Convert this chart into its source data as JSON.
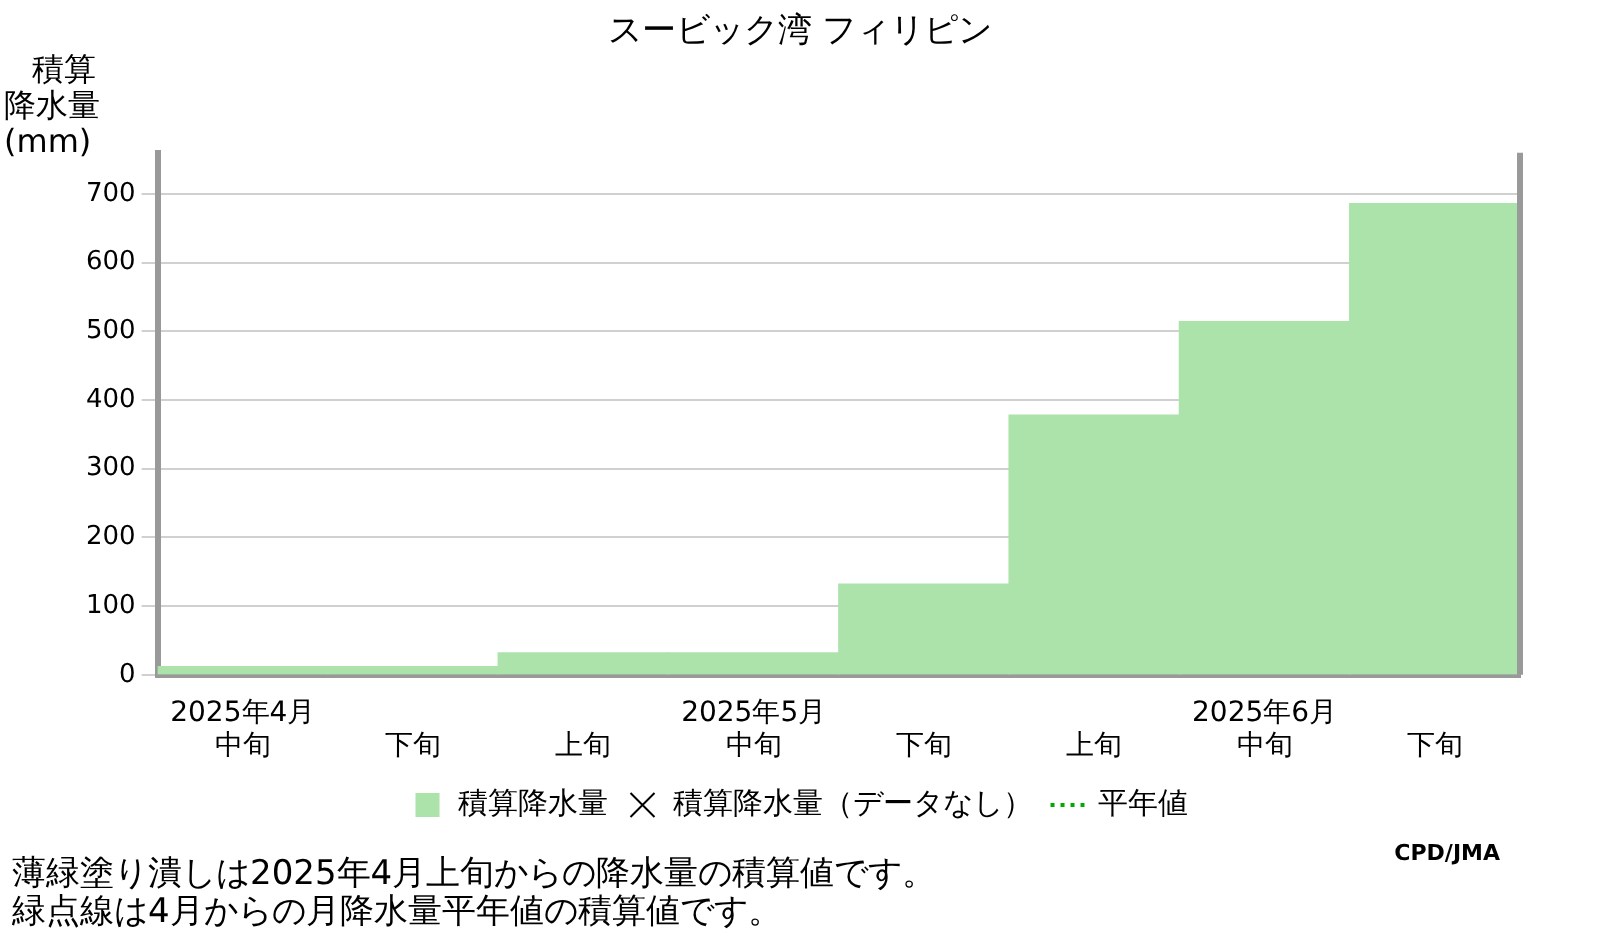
{
  "chart_data": {
    "type": "bar",
    "title": "スービック湾 フィリピン",
    "ylabel": "積算降水量(mm)",
    "categories": [
      "2025年4月中旬",
      "下旬",
      "上旬",
      "2025年5月中旬",
      "下旬",
      "上旬",
      "2025年6月中旬",
      "下旬"
    ],
    "series": [
      {
        "name": "積算降水量",
        "color": "#abe3ab",
        "values": [
          12,
          12,
          32,
          32,
          132,
          378,
          514,
          686
        ]
      },
      {
        "name": "積算降水量（データなし）",
        "type": "scatter",
        "marker": "cross",
        "color": "#000000",
        "values": [
          null,
          null,
          null,
          null,
          null,
          null,
          null,
          null
        ]
      },
      {
        "name": "平年値",
        "type": "line",
        "line_style": "dotted",
        "color": "#00aa00",
        "values": [
          null,
          null,
          null,
          null,
          null,
          null,
          null,
          null
        ]
      }
    ],
    "ylim": [
      0,
      760
    ],
    "yticks": [
      0,
      100,
      200,
      300,
      400,
      500,
      600,
      700
    ],
    "grid": "y",
    "legend": "bottom",
    "annotations": [
      "CPD/JMA",
      "薄緑塗り潰しは2025年4月上旬からの降水量の積算値です。",
      "緑点線は4月からの月降水量平年値の積算値です。"
    ]
  }
}
